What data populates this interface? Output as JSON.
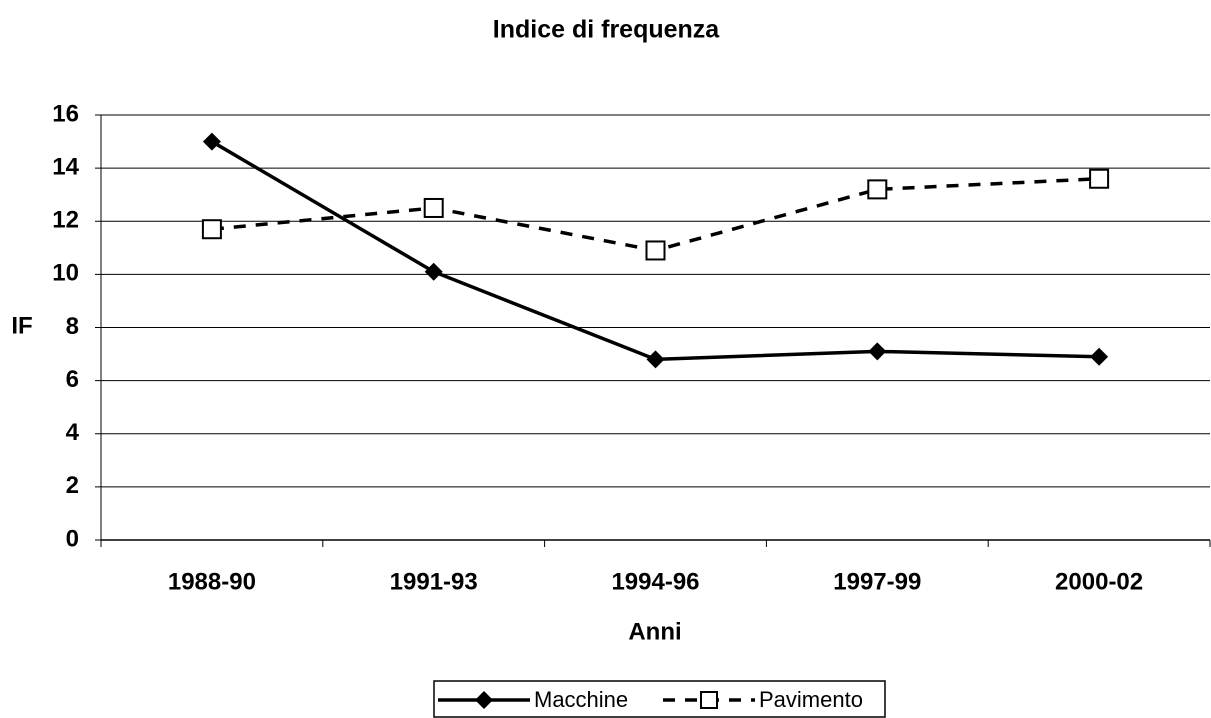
{
  "chart_data": {
    "type": "line",
    "title": "Indice di frequenza",
    "x_label": "Anni",
    "y_label": "IF",
    "categories": [
      "1988-90",
      "1991-93",
      "1994-96",
      "1997-99",
      "2000-02"
    ],
    "series": [
      {
        "name": "Macchine",
        "color": "#000000",
        "marker": "diamond",
        "dashed": false,
        "values": [
          15,
          10.1,
          6.8,
          7.1,
          6.9
        ]
      },
      {
        "name": "Pavimento",
        "color": "#000000",
        "marker": "square",
        "dashed": true,
        "values": [
          11.7,
          12.5,
          10.9,
          13.2,
          13.6
        ]
      }
    ],
    "ylim": [
      0,
      16
    ],
    "yticks": [
      0,
      2,
      4,
      6,
      8,
      10,
      12,
      14,
      16
    ],
    "grid": true,
    "legend": "bottom"
  }
}
